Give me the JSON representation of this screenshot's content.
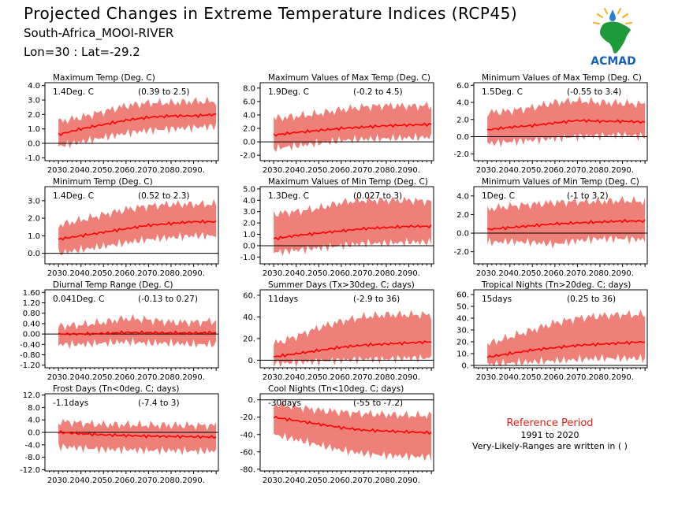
{
  "header": {
    "title": "Projected Changes in Extreme Temperature Indices (RCP45)",
    "location": "South-Africa_MOOI-RIVER",
    "coordinates": "Lon=30 : Lat=-29.2"
  },
  "logo": {
    "text": "ACMAD",
    "icon": "africa-map-logo"
  },
  "reference": {
    "title": "Reference Period",
    "period": "1991 to 2020",
    "note": "Very-Likely-Ranges are written in ( )"
  },
  "colors": {
    "band": "#ee8079",
    "line": "#ff0000",
    "axis": "#000000",
    "ref_title": "#e0201a"
  },
  "chart_data": [
    {
      "type": "area",
      "title": "Maximum Temp (Deg. C)",
      "summary": "1.4Deg. C",
      "range": "(0.39 to 2.5)",
      "x": [
        2030,
        2040,
        2050,
        2060,
        2070,
        2080,
        2090,
        2100
      ],
      "median": [
        0.6,
        1.0,
        1.3,
        1.6,
        1.8,
        1.9,
        1.9,
        2.0
      ],
      "lower": [
        -0.2,
        0.1,
        0.4,
        0.7,
        0.9,
        1.0,
        1.1,
        1.2
      ],
      "upper": [
        1.5,
        1.8,
        2.2,
        2.6,
        2.8,
        2.8,
        2.9,
        2.9
      ],
      "yticks": [
        "4.0",
        "3.0",
        "2.0",
        "1.0",
        "0.0",
        "-1.0"
      ],
      "ylim": [
        -1.2,
        4.2
      ],
      "xticks": [
        "2030.",
        "2040.",
        "2050.",
        "2060.",
        "2070.",
        "2080.",
        "2090."
      ]
    },
    {
      "type": "area",
      "title": "Maximum Values of Max Temp (Deg. C)",
      "summary": "1.9Deg. C",
      "range": "(-0.2 to 4.5)",
      "x": [
        2030,
        2040,
        2050,
        2060,
        2070,
        2080,
        2090,
        2100
      ],
      "median": [
        1.0,
        1.4,
        1.7,
        2.0,
        2.2,
        2.4,
        2.5,
        2.6
      ],
      "lower": [
        -1.0,
        -0.6,
        -0.2,
        0.2,
        0.4,
        0.5,
        0.6,
        0.7
      ],
      "upper": [
        3.5,
        3.8,
        4.2,
        4.8,
        5.2,
        5.4,
        5.3,
        5.4
      ],
      "yticks": [
        "8.0",
        "6.0",
        "4.0",
        "2.0",
        "0.0",
        "-2.0"
      ],
      "ylim": [
        -2.8,
        8.8
      ],
      "xticks": [
        "2030.",
        "2040.",
        "2050.",
        "2060.",
        "2070.",
        "2080.",
        "2090."
      ]
    },
    {
      "type": "area",
      "title": "Minimum Values of Max Temp (Deg. C)",
      "summary": "1.5Deg. C",
      "range": "(-0.55 to 3.4)",
      "x": [
        2030,
        2040,
        2050,
        2060,
        2070,
        2080,
        2090,
        2100
      ],
      "median": [
        0.8,
        1.1,
        1.3,
        1.6,
        1.9,
        1.8,
        1.8,
        1.7
      ],
      "lower": [
        -0.8,
        -0.6,
        -0.4,
        -0.2,
        0.0,
        0.1,
        0.2,
        0.0
      ],
      "upper": [
        2.8,
        3.0,
        3.4,
        4.0,
        4.2,
        4.0,
        3.9,
        3.8
      ],
      "yticks": [
        "6.0",
        "4.0",
        "2.0",
        "0.0",
        "-2.0"
      ],
      "ylim": [
        -2.8,
        6.3
      ],
      "xticks": [
        "2030.",
        "2040.",
        "2050.",
        "2060.",
        "2070.",
        "2080.",
        "2090."
      ]
    },
    {
      "type": "area",
      "title": "Minimum Temp (Deg. C)",
      "summary": "1.4Deg. C",
      "range": "(0.52 to 2.3)",
      "x": [
        2030,
        2040,
        2050,
        2060,
        2070,
        2080,
        2090,
        2100
      ],
      "median": [
        0.8,
        1.0,
        1.2,
        1.4,
        1.6,
        1.7,
        1.8,
        1.8
      ],
      "lower": [
        0.0,
        0.2,
        0.4,
        0.6,
        0.8,
        0.9,
        1.0,
        1.0
      ],
      "upper": [
        1.6,
        1.9,
        2.2,
        2.5,
        2.7,
        2.8,
        2.8,
        2.8
      ],
      "yticks": [
        "3.0",
        "2.0",
        "1.0",
        "0.0"
      ],
      "ylim": [
        -0.6,
        3.8
      ],
      "xticks": [
        "2030.",
        "2040.",
        "2050.",
        "2060.",
        "2070.",
        "2080.",
        "2090."
      ]
    },
    {
      "type": "area",
      "title": "Maximum Values of Min Temp (Deg. C)",
      "summary": "1.3Deg. C",
      "range": "(0.027 to 3)",
      "x": [
        2030,
        2040,
        2050,
        2060,
        2070,
        2080,
        2090,
        2100
      ],
      "median": [
        0.6,
        0.9,
        1.1,
        1.3,
        1.5,
        1.6,
        1.7,
        1.7
      ],
      "lower": [
        -0.6,
        -0.4,
        -0.2,
        0.0,
        0.2,
        0.2,
        0.3,
        0.3
      ],
      "upper": [
        2.8,
        3.0,
        3.3,
        3.8,
        4.0,
        4.0,
        4.0,
        3.9
      ],
      "yticks": [
        "5.0",
        "4.0",
        "3.0",
        "2.0",
        "1.0",
        "0.0",
        "-1.0"
      ],
      "ylim": [
        -1.6,
        5.2
      ],
      "xticks": [
        "2030.",
        "2040.",
        "2050.",
        "2060.",
        "2070.",
        "2080.",
        "2090."
      ]
    },
    {
      "type": "area",
      "title": "Minimum Values of Min Temp (Deg. C)",
      "summary": "1Deg. C",
      "range": "(-1 to 3.2)",
      "x": [
        2030,
        2040,
        2050,
        2060,
        2070,
        2080,
        2090,
        2100
      ],
      "median": [
        0.4,
        0.6,
        0.8,
        1.0,
        1.1,
        1.2,
        1.3,
        1.3
      ],
      "lower": [
        -1.0,
        -0.9,
        -1.0,
        -1.2,
        -0.8,
        -0.6,
        -0.6,
        -0.7
      ],
      "upper": [
        2.6,
        2.9,
        3.1,
        3.3,
        3.4,
        3.4,
        3.5,
        3.4
      ],
      "yticks": [
        "4.0",
        "2.0",
        "0.0",
        "-2.0"
      ],
      "ylim": [
        -3.3,
        5.0
      ],
      "xticks": [
        "2030.",
        "2040.",
        "2050.",
        "2060.",
        "2070.",
        "2080.",
        "2090."
      ]
    },
    {
      "type": "area",
      "title": "Diurnal Temp Range (Deg. C)",
      "summary": "0.041Deg. C",
      "range": "(-0.13 to 0.27)",
      "x": [
        2030,
        2040,
        2050,
        2060,
        2070,
        2080,
        2090,
        2100
      ],
      "median": [
        0.0,
        0.0,
        0.02,
        0.06,
        0.05,
        0.04,
        0.04,
        0.05
      ],
      "lower": [
        -0.4,
        -0.4,
        -0.35,
        -0.3,
        -0.35,
        -0.35,
        -0.4,
        -0.4
      ],
      "upper": [
        0.3,
        0.35,
        0.45,
        0.6,
        0.55,
        0.45,
        0.45,
        0.5
      ],
      "yticks": [
        "1.60",
        "1.20",
        "0.80",
        "0.40",
        "0.00",
        "-0.40",
        "-0.80",
        "-1.20"
      ],
      "ylim": [
        -1.3,
        1.7
      ],
      "xticks": [
        "2030.",
        "2040.",
        "2050.",
        "2060.",
        "2070.",
        "2080.",
        "2090."
      ]
    },
    {
      "type": "area",
      "title": "Summer Days (Tx>30deg. C; days)",
      "summary": "11days",
      "range": "(-2.9 to 36)",
      "x": [
        2030,
        2040,
        2050,
        2060,
        2070,
        2080,
        2090,
        2100
      ],
      "median": [
        3,
        6,
        9,
        12,
        14,
        15,
        16,
        17
      ],
      "lower": [
        -3,
        -2,
        -1,
        0,
        1,
        1,
        2,
        2
      ],
      "upper": [
        15,
        22,
        30,
        36,
        40,
        42,
        42,
        42
      ],
      "yticks": [
        "60.",
        "40.",
        "20.",
        "0."
      ],
      "ylim": [
        -7,
        65
      ],
      "xticks": [
        "2030.",
        "2040.",
        "2050.",
        "2060.",
        "2070.",
        "2080.",
        "2090."
      ]
    },
    {
      "type": "area",
      "title": "Tropical Nights (Tn>20deg. C; days)",
      "summary": "15days",
      "range": "(0.25 to 36)",
      "x": [
        2030,
        2040,
        2050,
        2060,
        2070,
        2080,
        2090,
        2100
      ],
      "median": [
        7,
        10,
        13,
        15,
        17,
        18,
        19,
        20
      ],
      "lower": [
        1,
        2,
        3,
        4,
        5,
        6,
        6,
        6
      ],
      "upper": [
        18,
        24,
        30,
        36,
        40,
        42,
        43,
        43
      ],
      "yticks": [
        "60.",
        "50.",
        "40.",
        "30.",
        "20.",
        "10.",
        "0."
      ],
      "ylim": [
        -2,
        64
      ],
      "xticks": [
        "2030.",
        "2040.",
        "2050.",
        "2060.",
        "2070.",
        "2080.",
        "2090."
      ]
    },
    {
      "type": "area",
      "title": "Frost Days (Tn<0deg. C; days)",
      "summary": "-1.1days",
      "range": "(-7.4 to 3)",
      "x": [
        2030,
        2040,
        2050,
        2060,
        2070,
        2080,
        2090,
        2100
      ],
      "median": [
        0.0,
        -0.4,
        -0.8,
        -1.0,
        -1.2,
        -1.3,
        -1.4,
        -1.5
      ],
      "lower": [
        -4.5,
        -5.0,
        -5.5,
        -5.5,
        -5.8,
        -5.8,
        -6.0,
        -6.0
      ],
      "upper": [
        3.5,
        3.0,
        2.5,
        2.5,
        2.3,
        2.3,
        2.2,
        2.2
      ],
      "yticks": [
        "12.0",
        "8.0",
        "4.0",
        "0.0",
        "-4.0",
        "-8.0",
        "-12.0"
      ],
      "ylim": [
        -12.4,
        12.4
      ],
      "xticks": [
        "2030.",
        "2040.",
        "2050.",
        "2060.",
        "2070.",
        "2080.",
        "2090."
      ]
    },
    {
      "type": "area",
      "title": "Cool Nights (Tn<10deg. C; days)",
      "summary": "-30days",
      "range": "(-55 to -7.2)",
      "x": [
        2030,
        2040,
        2050,
        2060,
        2070,
        2080,
        2090,
        2100
      ],
      "median": [
        -20,
        -24,
        -28,
        -32,
        -35,
        -36,
        -37,
        -38
      ],
      "lower": [
        -40,
        -46,
        -52,
        -58,
        -62,
        -64,
        -65,
        -66
      ],
      "upper": [
        -5,
        -8,
        -12,
        -14,
        -16,
        -17,
        -18,
        -18
      ],
      "yticks": [
        "0.",
        "-20.",
        "-40.",
        "-60.",
        "-80."
      ],
      "ylim": [
        -82,
        7
      ],
      "xticks": [
        "2030.",
        "2040.",
        "2050.",
        "2060.",
        "2070.",
        "2080.",
        "2090."
      ]
    }
  ]
}
